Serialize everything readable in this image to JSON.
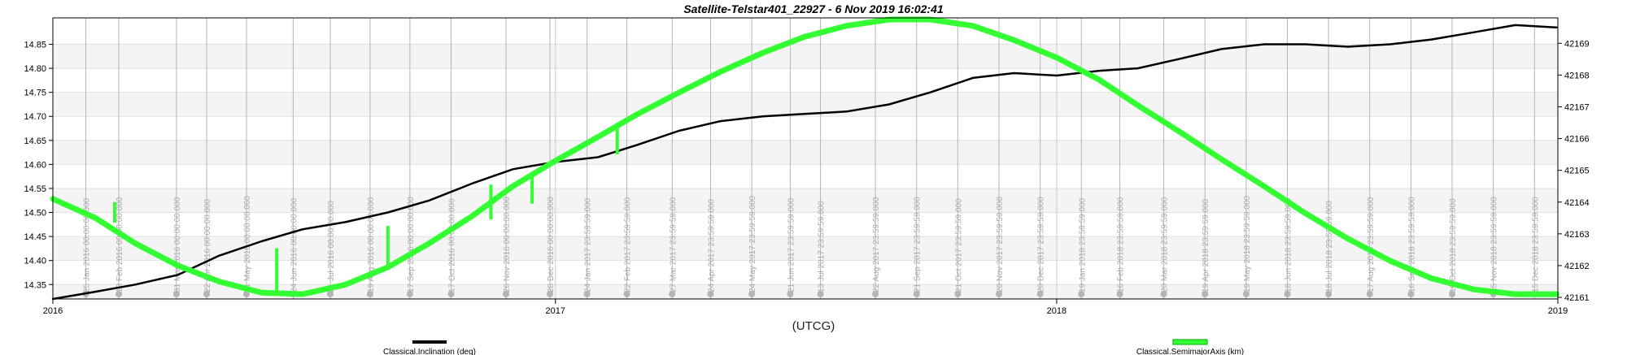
{
  "chart_data": {
    "type": "line",
    "title": "Satellite-Telstar401_22927 -  6 Nov 2019 16:02:41",
    "xlabel": "(UTCG)",
    "x_ticks": [
      "2016",
      "2017",
      "2018",
      "2019"
    ],
    "xlim": [
      "2016-01-01",
      "2019-01-01"
    ],
    "y_left": {
      "lim": [
        14.32,
        14.905
      ],
      "ticks": [
        "14.35",
        "14.40",
        "14.45",
        "14.50",
        "14.55",
        "14.60",
        "14.65",
        "14.70",
        "14.75",
        "14.80",
        "14.85"
      ]
    },
    "y_right": {
      "lim": [
        42160.95,
        42169.8
      ],
      "ticks": [
        "42161",
        "42162",
        "42163",
        "42164",
        "42165",
        "42166",
        "42167",
        "42168",
        "42169"
      ]
    },
    "grid": true,
    "legend_position": "bottom",
    "series": [
      {
        "name": "Classical.Inclination (deg)",
        "axis": "left",
        "color": "#000000",
        "x": [
          "2016-01-01",
          "2016-02-01",
          "2016-03-01",
          "2016-04-01",
          "2016-05-01",
          "2016-06-01",
          "2016-07-01",
          "2016-08-01",
          "2016-09-01",
          "2016-10-01",
          "2016-11-01",
          "2016-12-01",
          "2017-01-01",
          "2017-02-01",
          "2017-03-01",
          "2017-04-01",
          "2017-05-01",
          "2017-06-01",
          "2017-07-01",
          "2017-08-01",
          "2017-09-01",
          "2017-10-01",
          "2017-11-01",
          "2017-12-01",
          "2018-01-01",
          "2018-02-01",
          "2018-03-01",
          "2018-04-01",
          "2018-05-01",
          "2018-06-01",
          "2018-07-01",
          "2018-08-01",
          "2018-09-01",
          "2018-10-01",
          "2018-11-01",
          "2018-12-01",
          "2018-12-31"
        ],
        "y": [
          14.32,
          14.335,
          14.35,
          14.37,
          14.41,
          14.44,
          14.465,
          14.48,
          14.5,
          14.525,
          14.56,
          14.59,
          14.605,
          14.615,
          14.64,
          14.67,
          14.69,
          14.7,
          14.705,
          14.71,
          14.725,
          14.75,
          14.78,
          14.79,
          14.785,
          14.795,
          14.8,
          14.82,
          14.84,
          14.85,
          14.85,
          14.845,
          14.85,
          14.86,
          14.875,
          14.89,
          14.885
        ]
      },
      {
        "name": "Classical.SemimajorAxis (km)",
        "axis": "right",
        "color": "#33ff33",
        "x": [
          "2016-01-01",
          "2016-02-01",
          "2016-03-01",
          "2016-04-01",
          "2016-05-01",
          "2016-06-01",
          "2016-07-01",
          "2016-08-01",
          "2016-09-01",
          "2016-10-01",
          "2016-11-01",
          "2016-12-01",
          "2017-01-01",
          "2017-02-01",
          "2017-03-01",
          "2017-04-01",
          "2017-05-01",
          "2017-06-01",
          "2017-07-01",
          "2017-08-01",
          "2017-09-01",
          "2017-10-01",
          "2017-11-01",
          "2017-12-01",
          "2018-01-01",
          "2018-02-01",
          "2018-03-01",
          "2018-04-01",
          "2018-05-01",
          "2018-06-01",
          "2018-07-01",
          "2018-08-01",
          "2018-09-01",
          "2018-10-01",
          "2018-11-01",
          "2018-12-01",
          "2018-12-31"
        ],
        "y": [
          42164.1,
          42163.5,
          42162.7,
          42162.0,
          42161.5,
          42161.15,
          42161.1,
          42161.4,
          42161.95,
          42162.7,
          42163.55,
          42164.5,
          42165.3,
          42166.05,
          42166.75,
          42167.45,
          42168.1,
          42168.7,
          42169.2,
          42169.55,
          42169.75,
          42169.75,
          42169.55,
          42169.1,
          42168.55,
          42167.85,
          42167.05,
          42166.2,
          42165.35,
          42164.5,
          42163.65,
          42162.85,
          42162.15,
          42161.6,
          42161.25,
          42161.1,
          42161.1
        ]
      }
    ],
    "spikes": [
      {
        "x": "2016-02-15",
        "y_from": 42163.35,
        "y_to": 42164.0
      },
      {
        "x": "2016-06-12",
        "y_from": 42161.1,
        "y_to": 42162.55
      },
      {
        "x": "2016-09-01",
        "y_from": 42161.95,
        "y_to": 42163.25
      },
      {
        "x": "2016-11-15",
        "y_from": 42163.45,
        "y_to": 42164.55
      },
      {
        "x": "2016-12-15",
        "y_from": 42163.95,
        "y_to": 42164.95
      },
      {
        "x": "2017-02-15",
        "y_from": 42165.5,
        "y_to": 42166.45
      }
    ],
    "event_markers": [
      {
        "x": "2016-01-25",
        "label": "25 Jan 2016 00:00:00.000"
      },
      {
        "x": "2016-02-18",
        "label": "18 Feb 2016 00:00:00.000"
      },
      {
        "x": "2016-03-31",
        "label": "31 Mar 2016 00:00:00.000"
      },
      {
        "x": "2016-04-22",
        "label": "22 Apr 2016 00:00:00.000"
      },
      {
        "x": "2016-05-21",
        "label": "21 May 2016 00:00:00.000"
      },
      {
        "x": "2016-06-24",
        "label": "24 Jun 2016 00:00:00.000"
      },
      {
        "x": "2016-07-21",
        "label": "21 Jul 2016 00:00:00.000"
      },
      {
        "x": "2016-08-19",
        "label": "19 Aug 2016 00:00:00.000"
      },
      {
        "x": "2016-09-17",
        "label": "17 Sep 2016 00:00:00.000"
      },
      {
        "x": "2016-10-17",
        "label": "17 Oct 2016 00:00:00.000"
      },
      {
        "x": "2016-11-26",
        "label": "26 Nov 2016 00:00:00.000"
      },
      {
        "x": "2016-12-28",
        "label": "28 Dec 2016 00:00:00.000"
      },
      {
        "x": "2017-01-24",
        "label": "24 Jan 2017 23:59:59.000"
      },
      {
        "x": "2017-02-22",
        "label": "22 Feb 2017 23:59:59.000"
      },
      {
        "x": "2017-03-27",
        "label": "27 Mar 2017 23:59:59.000"
      },
      {
        "x": "2017-04-24",
        "label": "24 Apr 2017 23:59:59.000"
      },
      {
        "x": "2017-05-24",
        "label": "24 May 2017 23:59:59.000"
      },
      {
        "x": "2017-06-21",
        "label": "21 Jun 2017 23:59:59.000"
      },
      {
        "x": "2017-07-13",
        "label": "13 Jul 2017 23:59:59.000"
      },
      {
        "x": "2017-08-22",
        "label": "22 Aug 2017 23:59:59.000"
      },
      {
        "x": "2017-09-21",
        "label": "21 Sep 2017 23:59:59.000"
      },
      {
        "x": "2017-10-21",
        "label": "21 Oct 2017 23:59:59.000"
      },
      {
        "x": "2017-11-20",
        "label": "20 Nov 2017 23:59:59.000"
      },
      {
        "x": "2017-12-20",
        "label": "20 Dec 2017 23:59:59.000"
      },
      {
        "x": "2018-01-19",
        "label": "19 Jan 2018 23:59:59.000"
      },
      {
        "x": "2018-02-16",
        "label": "16 Feb 2018 23:59:59.000"
      },
      {
        "x": "2018-03-20",
        "label": "20 Mar 2018 23:59:59.000"
      },
      {
        "x": "2018-04-19",
        "label": "19 Apr 2018 23:59:59.000"
      },
      {
        "x": "2018-05-19",
        "label": "19 May 2018 23:59:59.000"
      },
      {
        "x": "2018-06-18",
        "label": "18 Jun 2018 23:59:59.000"
      },
      {
        "x": "2018-07-18",
        "label": "18 Jul 2018 23:59:59.000"
      },
      {
        "x": "2018-08-17",
        "label": "17 Aug 2018 23:59:59.000"
      },
      {
        "x": "2018-09-16",
        "label": "16 Sep 2018 23:59:59.000"
      },
      {
        "x": "2018-10-16",
        "label": "16 Oct 2018 23:59:59.000"
      },
      {
        "x": "2018-11-15",
        "label": "15 Nov 2018 23:59:59.000"
      },
      {
        "x": "2018-12-15",
        "label": "15 Dec 2018 23:59:59.000"
      }
    ]
  }
}
